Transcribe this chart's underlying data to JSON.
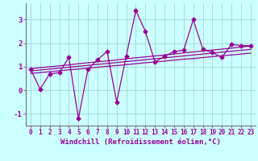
{
  "xlabel": "Windchill (Refroidissement éolien,°C)",
  "x_values": [
    0,
    1,
    2,
    3,
    4,
    5,
    6,
    7,
    8,
    9,
    10,
    11,
    12,
    13,
    14,
    15,
    16,
    17,
    18,
    19,
    20,
    21,
    22,
    23
  ],
  "data_line": [
    0.9,
    0.05,
    0.7,
    0.75,
    1.4,
    -1.2,
    0.9,
    1.3,
    1.65,
    -0.5,
    1.45,
    3.4,
    2.5,
    1.2,
    1.45,
    1.65,
    1.7,
    3.0,
    1.75,
    1.6,
    1.4,
    1.95,
    1.9,
    1.9
  ],
  "regression_lines": [
    [
      0.72,
      0.75,
      0.79,
      0.83,
      0.87,
      0.9,
      0.94,
      0.98,
      1.02,
      1.05,
      1.09,
      1.13,
      1.17,
      1.2,
      1.24,
      1.28,
      1.32,
      1.35,
      1.39,
      1.43,
      1.47,
      1.5,
      1.54,
      1.58
    ],
    [
      0.82,
      0.86,
      0.9,
      0.94,
      0.98,
      1.02,
      1.06,
      1.1,
      1.14,
      1.18,
      1.22,
      1.26,
      1.3,
      1.34,
      1.38,
      1.42,
      1.46,
      1.5,
      1.54,
      1.58,
      1.62,
      1.66,
      1.7,
      1.74
    ],
    [
      0.92,
      0.96,
      1.0,
      1.04,
      1.08,
      1.13,
      1.17,
      1.21,
      1.25,
      1.29,
      1.34,
      1.38,
      1.42,
      1.46,
      1.5,
      1.54,
      1.59,
      1.63,
      1.67,
      1.71,
      1.75,
      1.79,
      1.84,
      1.88
    ]
  ],
  "line_color": "#990099",
  "bg_color": "#ccffff",
  "grid_color": "#99cccc",
  "axis_color": "#666666",
  "ylim": [
    -1.5,
    3.7
  ],
  "xlim": [
    -0.5,
    23.5
  ],
  "yticks": [
    -1,
    0,
    1,
    2,
    3
  ],
  "xticks": [
    0,
    1,
    2,
    3,
    4,
    5,
    6,
    7,
    8,
    9,
    10,
    11,
    12,
    13,
    14,
    15,
    16,
    17,
    18,
    19,
    20,
    21,
    22,
    23
  ],
  "tick_fontsize": 5.5,
  "label_fontsize": 6.5,
  "marker_size": 2.5,
  "line_width": 0.9
}
